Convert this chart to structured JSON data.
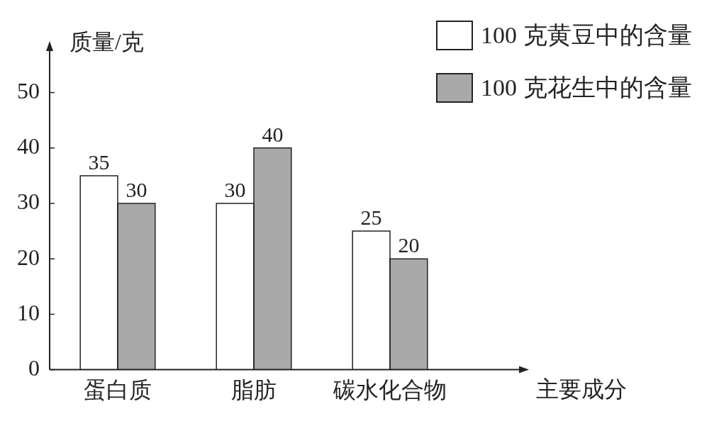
{
  "chart_data": {
    "type": "bar",
    "ylabel": "质量/克",
    "xlabel": "主要成分",
    "categories": [
      "蛋白质",
      "脂肪",
      "碳水化合物"
    ],
    "series": [
      {
        "name": "100 克黄豆中的含量",
        "color": "#ffffff",
        "values": [
          35,
          30,
          25
        ]
      },
      {
        "name": "100 克花生中的含量",
        "color": "#a9a9a9",
        "values": [
          30,
          40,
          20
        ]
      }
    ],
    "ylim": [
      0,
      58
    ],
    "yticks": [
      0,
      10,
      20,
      30,
      40,
      50
    ],
    "grid": false,
    "legend": "top right",
    "data_labels": true
  }
}
